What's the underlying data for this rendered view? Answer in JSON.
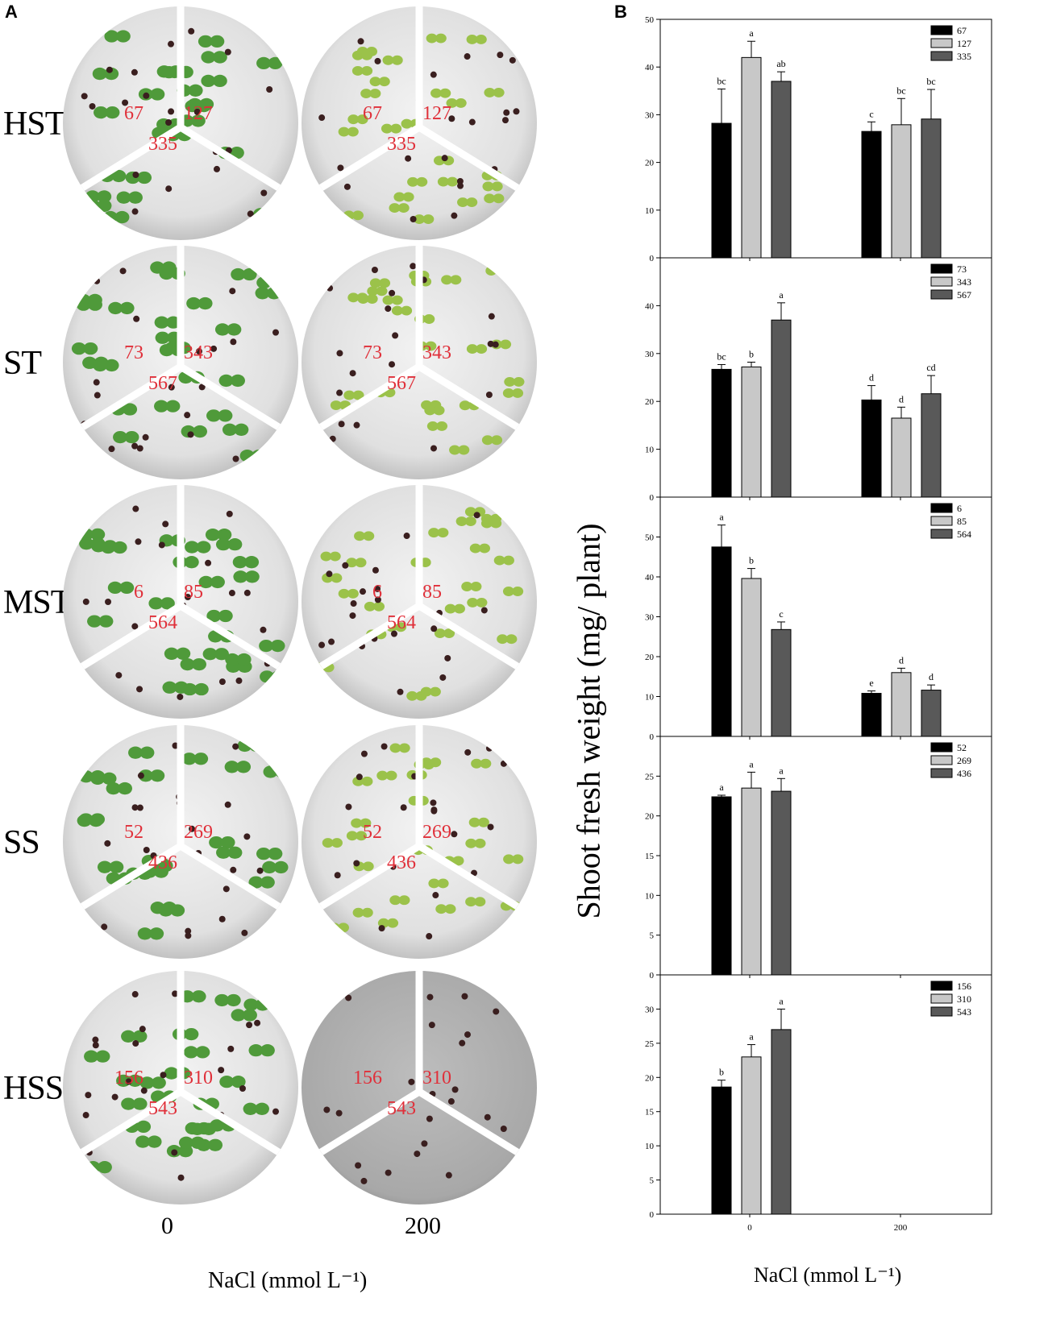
{
  "panel_labels": {
    "a": "A",
    "b": "B"
  },
  "panel_a": {
    "rows": [
      {
        "label": "HST",
        "lines": [
          "67",
          "127",
          "335"
        ],
        "seedlings_200": true
      },
      {
        "label": "ST",
        "lines": [
          "73",
          "343",
          "567"
        ],
        "seedlings_200": true
      },
      {
        "label": "MST",
        "lines": [
          "6",
          "85",
          "564"
        ],
        "seedlings_200": true
      },
      {
        "label": "SS",
        "lines": [
          "52",
          "269",
          "436"
        ],
        "seedlings_200": true
      },
      {
        "label": "HSS",
        "lines": [
          "156",
          "310",
          "543"
        ],
        "seedlings_200": false
      }
    ],
    "x_ticks": [
      "0",
      "200"
    ],
    "x_title": "NaCl (mmol L⁻¹)",
    "label_color": "#e0303a"
  },
  "chart_data": {
    "type": "bar",
    "ylabel": "Shoot fresh weight (mg/ plant)",
    "xlabel": "NaCl (mmol L⁻¹)",
    "categories": [
      "0",
      "200"
    ],
    "series_colors": [
      "#000000",
      "#c8c8c8",
      "#595959"
    ],
    "legend_position": "top-right",
    "panels": [
      {
        "ylim": [
          0,
          50
        ],
        "yticks": [
          0,
          10,
          20,
          30,
          40,
          50
        ],
        "series": [
          {
            "name": "67",
            "values": [
              28.2,
              26.5
            ],
            "errors": [
              7.2,
              2.0
            ],
            "letters": [
              "bc",
              "c"
            ]
          },
          {
            "name": "127",
            "values": [
              42.0,
              27.9
            ],
            "errors": [
              3.4,
              5.5
            ],
            "letters": [
              "a",
              "bc"
            ]
          },
          {
            "name": "335",
            "values": [
              37.0,
              29.1
            ],
            "errors": [
              2.0,
              6.2
            ],
            "letters": [
              "ab",
              "bc"
            ]
          }
        ]
      },
      {
        "ylim": [
          0,
          50
        ],
        "yticks": [
          0,
          10,
          20,
          30,
          40
        ],
        "series": [
          {
            "name": "73",
            "values": [
              26.7,
              20.3
            ],
            "errors": [
              1.0,
              3.0
            ],
            "letters": [
              "bc",
              "d"
            ]
          },
          {
            "name": "343",
            "values": [
              27.2,
              16.5
            ],
            "errors": [
              1.0,
              2.3
            ],
            "letters": [
              "b",
              "d"
            ]
          },
          {
            "name": "567",
            "values": [
              37.0,
              21.6
            ],
            "errors": [
              3.6,
              3.8
            ],
            "letters": [
              "a",
              "cd"
            ]
          }
        ]
      },
      {
        "ylim": [
          0,
          60
        ],
        "yticks": [
          0,
          10,
          20,
          30,
          40,
          50
        ],
        "series": [
          {
            "name": "6",
            "values": [
              47.5,
              10.8
            ],
            "errors": [
              5.5,
              0.6
            ],
            "letters": [
              "a",
              "e"
            ]
          },
          {
            "name": "85",
            "values": [
              39.6,
              16.0
            ],
            "errors": [
              2.5,
              1.1
            ],
            "letters": [
              "b",
              "d"
            ]
          },
          {
            "name": "564",
            "values": [
              26.8,
              11.6
            ],
            "errors": [
              1.9,
              1.3
            ],
            "letters": [
              "c",
              "d"
            ]
          }
        ]
      },
      {
        "ylim": [
          0,
          30
        ],
        "yticks": [
          0,
          5,
          10,
          15,
          20,
          25
        ],
        "series": [
          {
            "name": "52",
            "values": [
              22.4,
              null
            ],
            "errors": [
              0.2,
              null
            ],
            "letters": [
              "a",
              ""
            ]
          },
          {
            "name": "269",
            "values": [
              23.5,
              null
            ],
            "errors": [
              2.0,
              null
            ],
            "letters": [
              "a",
              ""
            ]
          },
          {
            "name": "436",
            "values": [
              23.1,
              null
            ],
            "errors": [
              1.6,
              null
            ],
            "letters": [
              "a",
              ""
            ]
          }
        ]
      },
      {
        "ylim": [
          0,
          35
        ],
        "yticks": [
          0,
          5,
          10,
          15,
          20,
          25,
          30
        ],
        "series": [
          {
            "name": "156",
            "values": [
              18.6,
              null
            ],
            "errors": [
              1.0,
              null
            ],
            "letters": [
              "b",
              ""
            ]
          },
          {
            "name": "310",
            "values": [
              23.0,
              null
            ],
            "errors": [
              1.8,
              null
            ],
            "letters": [
              "a",
              ""
            ]
          },
          {
            "name": "543",
            "values": [
              27.0,
              null
            ],
            "errors": [
              3.0,
              null
            ],
            "letters": [
              "a",
              ""
            ]
          }
        ]
      }
    ]
  }
}
